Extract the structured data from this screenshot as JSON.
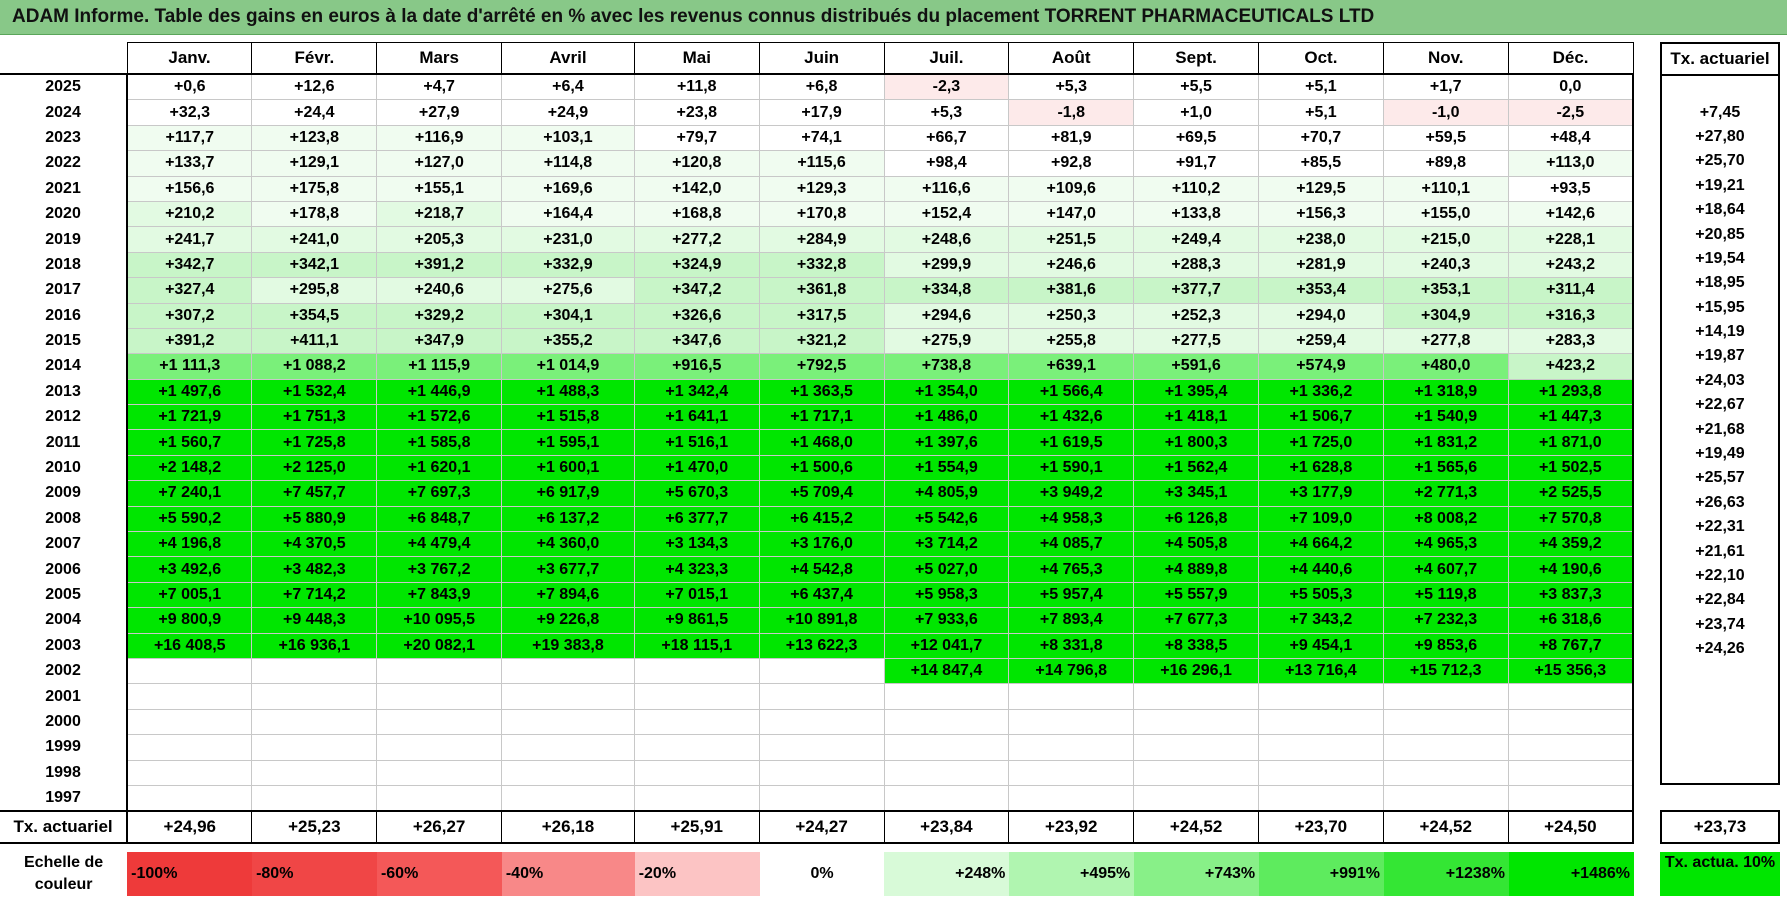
{
  "title": "ADAM Informe. Table des gains en euros à la date d'arrêté en % avec les revenus connus distribués du placement TORRENT PHARMACEUTICALS LTD",
  "months": [
    "Janv.",
    "Févr.",
    "Mars",
    "Avril",
    "Mai",
    "Juin",
    "Juil.",
    "Août",
    "Sept.",
    "Oct.",
    "Nov.",
    "Déc."
  ],
  "act_header": "Tx. actuariel",
  "rows": [
    {
      "year": "2025",
      "values": [
        "+0,6",
        "+12,6",
        "+4,7",
        "+6,4",
        "+11,8",
        "+6,8",
        "-2,3",
        "+5,3",
        "+5,5",
        "+5,1",
        "+1,7",
        "0,0"
      ],
      "act": ""
    },
    {
      "year": "2024",
      "values": [
        "+32,3",
        "+24,4",
        "+27,9",
        "+24,9",
        "+23,8",
        "+17,9",
        "+5,3",
        "-1,8",
        "+1,0",
        "+5,1",
        "-1,0",
        "-2,5"
      ],
      "act": "+7,45"
    },
    {
      "year": "2023",
      "values": [
        "+117,7",
        "+123,8",
        "+116,9",
        "+103,1",
        "+79,7",
        "+74,1",
        "+66,7",
        "+81,9",
        "+69,5",
        "+70,7",
        "+59,5",
        "+48,4"
      ],
      "act": "+27,80"
    },
    {
      "year": "2022",
      "values": [
        "+133,7",
        "+129,1",
        "+127,0",
        "+114,8",
        "+120,8",
        "+115,6",
        "+98,4",
        "+92,8",
        "+91,7",
        "+85,5",
        "+89,8",
        "+113,0"
      ],
      "act": "+25,70"
    },
    {
      "year": "2021",
      "values": [
        "+156,6",
        "+175,8",
        "+155,1",
        "+169,6",
        "+142,0",
        "+129,3",
        "+116,6",
        "+109,6",
        "+110,2",
        "+129,5",
        "+110,1",
        "+93,5"
      ],
      "act": "+19,21"
    },
    {
      "year": "2020",
      "values": [
        "+210,2",
        "+178,8",
        "+218,7",
        "+164,4",
        "+168,8",
        "+170,8",
        "+152,4",
        "+147,0",
        "+133,8",
        "+156,3",
        "+155,0",
        "+142,6"
      ],
      "act": "+18,64"
    },
    {
      "year": "2019",
      "values": [
        "+241,7",
        "+241,0",
        "+205,3",
        "+231,0",
        "+277,2",
        "+284,9",
        "+248,6",
        "+251,5",
        "+249,4",
        "+238,0",
        "+215,0",
        "+228,1"
      ],
      "act": "+20,85"
    },
    {
      "year": "2018",
      "values": [
        "+342,7",
        "+342,1",
        "+391,2",
        "+332,9",
        "+324,9",
        "+332,8",
        "+299,9",
        "+246,6",
        "+288,3",
        "+281,9",
        "+240,3",
        "+243,2"
      ],
      "act": "+19,54"
    },
    {
      "year": "2017",
      "values": [
        "+327,4",
        "+295,8",
        "+240,6",
        "+275,6",
        "+347,2",
        "+361,8",
        "+334,8",
        "+381,6",
        "+377,7",
        "+353,4",
        "+353,1",
        "+311,4"
      ],
      "act": "+18,95"
    },
    {
      "year": "2016",
      "values": [
        "+307,2",
        "+354,5",
        "+329,2",
        "+304,1",
        "+326,6",
        "+317,5",
        "+294,6",
        "+250,3",
        "+252,3",
        "+294,0",
        "+304,9",
        "+316,3"
      ],
      "act": "+15,95"
    },
    {
      "year": "2015",
      "values": [
        "+391,2",
        "+411,1",
        "+347,9",
        "+355,2",
        "+347,6",
        "+321,2",
        "+275,9",
        "+255,8",
        "+277,5",
        "+259,4",
        "+277,8",
        "+283,3"
      ],
      "act": "+14,19"
    },
    {
      "year": "2014",
      "values": [
        "+1 111,3",
        "+1 088,2",
        "+1 115,9",
        "+1 014,9",
        "+916,5",
        "+792,5",
        "+738,8",
        "+639,1",
        "+591,6",
        "+574,9",
        "+480,0",
        "+423,2"
      ],
      "act": "+19,87"
    },
    {
      "year": "2013",
      "values": [
        "+1 497,6",
        "+1 532,4",
        "+1 446,9",
        "+1 488,3",
        "+1 342,4",
        "+1 363,5",
        "+1 354,0",
        "+1 566,4",
        "+1 395,4",
        "+1 336,2",
        "+1 318,9",
        "+1 293,8"
      ],
      "act": "+24,03"
    },
    {
      "year": "2012",
      "values": [
        "+1 721,9",
        "+1 751,3",
        "+1 572,6",
        "+1 515,8",
        "+1 641,1",
        "+1 717,1",
        "+1 486,0",
        "+1 432,6",
        "+1 418,1",
        "+1 506,7",
        "+1 540,9",
        "+1 447,3"
      ],
      "act": "+22,67"
    },
    {
      "year": "2011",
      "values": [
        "+1 560,7",
        "+1 725,8",
        "+1 585,8",
        "+1 595,1",
        "+1 516,1",
        "+1 468,0",
        "+1 397,6",
        "+1 619,5",
        "+1 800,3",
        "+1 725,0",
        "+1 831,2",
        "+1 871,0"
      ],
      "act": "+21,68"
    },
    {
      "year": "2010",
      "values": [
        "+2 148,2",
        "+2 125,0",
        "+1 620,1",
        "+1 600,1",
        "+1 470,0",
        "+1 500,6",
        "+1 554,9",
        "+1 590,1",
        "+1 562,4",
        "+1 628,8",
        "+1 565,6",
        "+1 502,5"
      ],
      "act": "+19,49"
    },
    {
      "year": "2009",
      "values": [
        "+7 240,1",
        "+7 457,7",
        "+7 697,3",
        "+6 917,9",
        "+5 670,3",
        "+5 709,4",
        "+4 805,9",
        "+3 949,2",
        "+3 345,1",
        "+3 177,9",
        "+2 771,3",
        "+2 525,5"
      ],
      "act": "+25,57"
    },
    {
      "year": "2008",
      "values": [
        "+5 590,2",
        "+5 880,9",
        "+6 848,7",
        "+6 137,2",
        "+6 377,7",
        "+6 415,2",
        "+5 542,6",
        "+4 958,3",
        "+6 126,8",
        "+7 109,0",
        "+8 008,2",
        "+7 570,8"
      ],
      "act": "+26,63"
    },
    {
      "year": "2007",
      "values": [
        "+4 196,8",
        "+4 370,5",
        "+4 479,4",
        "+4 360,0",
        "+3 134,3",
        "+3 176,0",
        "+3 714,2",
        "+4 085,7",
        "+4 505,8",
        "+4 664,2",
        "+4 965,3",
        "+4 359,2"
      ],
      "act": "+22,31"
    },
    {
      "year": "2006",
      "values": [
        "+3 492,6",
        "+3 482,3",
        "+3 767,2",
        "+3 677,7",
        "+4 323,3",
        "+4 542,8",
        "+5 027,0",
        "+4 765,3",
        "+4 889,8",
        "+4 440,6",
        "+4 607,7",
        "+4 190,6"
      ],
      "act": "+21,61"
    },
    {
      "year": "2005",
      "values": [
        "+7 005,1",
        "+7 714,2",
        "+7 843,9",
        "+7 894,6",
        "+7 015,1",
        "+6 437,4",
        "+5 958,3",
        "+5 957,4",
        "+5 557,9",
        "+5 505,3",
        "+5 119,8",
        "+3 837,3"
      ],
      "act": "+22,10"
    },
    {
      "year": "2004",
      "values": [
        "+9 800,9",
        "+9 448,3",
        "+10 095,5",
        "+9 226,8",
        "+9 861,5",
        "+10 891,8",
        "+7 933,6",
        "+7 893,4",
        "+7 677,3",
        "+7 343,2",
        "+7 232,3",
        "+6 318,6"
      ],
      "act": "+22,84"
    },
    {
      "year": "2003",
      "values": [
        "+16 408,5",
        "+16 936,1",
        "+20 082,1",
        "+19 383,8",
        "+18 115,1",
        "+13 622,3",
        "+12 041,7",
        "+8 331,8",
        "+8 338,5",
        "+9 454,1",
        "+9 853,6",
        "+8 767,7"
      ],
      "act": "+23,74"
    },
    {
      "year": "2002",
      "values": [
        "",
        "",
        "",
        "",
        "",
        "",
        "+14 847,4",
        "+14 796,8",
        "+16 296,1",
        "+13 716,4",
        "+15 712,3",
        "+15 356,3"
      ],
      "act": "+24,26"
    },
    {
      "year": "2001",
      "values": [
        "",
        "",
        "",
        "",
        "",
        "",
        "",
        "",
        "",
        "",
        "",
        ""
      ],
      "act": ""
    },
    {
      "year": "2000",
      "values": [
        "",
        "",
        "",
        "",
        "",
        "",
        "",
        "",
        "",
        "",
        "",
        ""
      ],
      "act": ""
    },
    {
      "year": "1999",
      "values": [
        "",
        "",
        "",
        "",
        "",
        "",
        "",
        "",
        "",
        "",
        "",
        ""
      ],
      "act": ""
    },
    {
      "year": "1998",
      "values": [
        "",
        "",
        "",
        "",
        "",
        "",
        "",
        "",
        "",
        "",
        "",
        ""
      ],
      "act": ""
    },
    {
      "year": "1997",
      "values": [
        "",
        "",
        "",
        "",
        "",
        "",
        "",
        "",
        "",
        "",
        "",
        ""
      ],
      "act": ""
    }
  ],
  "footer": {
    "label": "Tx. actuariel",
    "values": [
      "+24,96",
      "+25,23",
      "+26,27",
      "+26,18",
      "+25,91",
      "+24,27",
      "+23,84",
      "+23,92",
      "+24,52",
      "+23,70",
      "+24,52",
      "+24,50"
    ],
    "act": "+23,73"
  },
  "scale": {
    "label": "Echelle de couleur",
    "items": [
      {
        "text": "-100%",
        "color": "#ee3a3a",
        "kind": "neg"
      },
      {
        "text": "-80%",
        "color": "#f04646",
        "kind": "neg"
      },
      {
        "text": "-60%",
        "color": "#f45858",
        "kind": "neg"
      },
      {
        "text": "-40%",
        "color": "#f88888",
        "kind": "neg"
      },
      {
        "text": "-20%",
        "color": "#fcc4c4",
        "kind": "neg"
      },
      {
        "text": "0%",
        "color": "#ffffff",
        "kind": "zero"
      },
      {
        "text": "+248%",
        "color": "#d8fad8",
        "kind": "pos"
      },
      {
        "text": "+495%",
        "color": "#b0f5b0",
        "kind": "pos"
      },
      {
        "text": "+743%",
        "color": "#88f088",
        "kind": "pos"
      },
      {
        "text": "+991%",
        "color": "#5eeb5e",
        "kind": "pos"
      },
      {
        "text": "+1238%",
        "color": "#34e634",
        "kind": "pos"
      },
      {
        "text": "+1486%",
        "color": "#00e600",
        "kind": "pos"
      }
    ],
    "act_label": "Tx. actua. 10%"
  },
  "colors": {
    "title_bg": "#88c888",
    "negative_cell": "#fdeaea",
    "pale_green": "#f0fcf0",
    "mid_green": "#c8f5c8",
    "bright_green_1": "#7af07a",
    "bright_green_2": "#00e600"
  }
}
